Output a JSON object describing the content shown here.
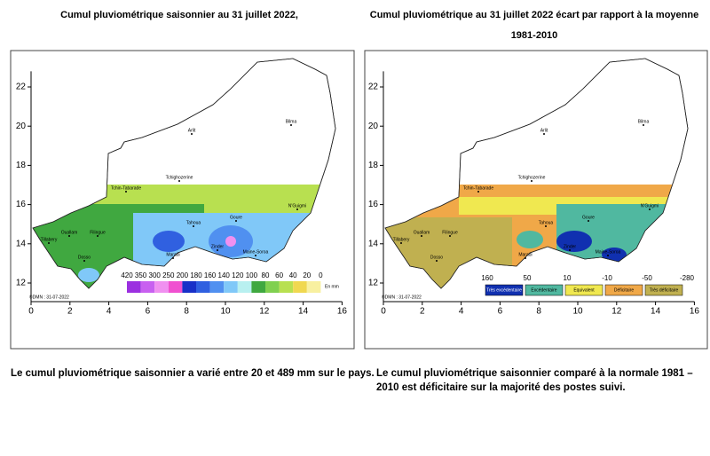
{
  "maps": [
    {
      "title": [
        "Cumul pluviométrique saisonnier au 31 juillet 2022,"
      ],
      "xticks": [
        0,
        2,
        4,
        6,
        8,
        10,
        12,
        14,
        16
      ],
      "yticks": [
        12,
        14,
        16,
        18,
        20,
        22
      ],
      "legend": {
        "labels": [
          420,
          350,
          300,
          250,
          200,
          180,
          160,
          140,
          120,
          100,
          80,
          60,
          40,
          20,
          0
        ],
        "colors": [
          "#9b30e0",
          "#c860f0",
          "#f090f0",
          "#f050d0",
          "#1830c8",
          "#3060e0",
          "#5090f0",
          "#80c8f8",
          "#b8f0f0",
          "#40a840",
          "#80d050",
          "#b8e050",
          "#f0d850",
          "#f8f0a0"
        ],
        "unit": "En mm"
      },
      "places": [
        "Arlit",
        "Bilma",
        "Tchighozerine",
        "Tchin-Tabarade",
        "Tahoua",
        "Goure",
        "N'Guigmi",
        "Maine-Soroa",
        "Ouallam",
        "Tillabery",
        "Filingue",
        "Dosso",
        "Maradi",
        "Zinder"
      ],
      "credit": "©DMN : 31-07-2022",
      "caption": [
        "Le cumul pluviométrique saisonnier a varié entre 20 et 489 mm sur le pays."
      ]
    },
    {
      "title": [
        "Cumul pluviométrique au 31  juillet 2022 écart par rapport à la moyenne",
        "1981-2010"
      ],
      "xticks": [
        0,
        2,
        4,
        6,
        8,
        10,
        12,
        14,
        16
      ],
      "yticks": [
        12,
        14,
        16,
        18,
        20,
        22
      ],
      "legend": {
        "scale": [
          160,
          50,
          10,
          -10,
          -50,
          -280
        ],
        "classes": [
          {
            "label": "Très excédentaire",
            "color": "#1030b0"
          },
          {
            "label": "Excédentaire",
            "color": "#50b8a0"
          },
          {
            "label": "Equivalent",
            "color": "#f0e850"
          },
          {
            "label": "Déficitaire",
            "color": "#f0a848"
          },
          {
            "label": "Très déficitaire",
            "color": "#c0b050"
          }
        ]
      },
      "places": [
        "Arlit",
        "Bilma",
        "Tchighozerine",
        "Tchin-Tabarade",
        "Tahoua",
        "Goure",
        "N'Guigmi",
        "Maine-Soroa",
        "Ouallam",
        "Tillabery",
        "Filingue",
        "Dosso",
        "Maradi",
        "Zinder"
      ],
      "credit": "©DMN : 31-07-2022",
      "caption": [
        "Le cumul pluviométrique saisonnier comparé à la normale 1981 –",
        "2010 est déficitaire sur la majorité des postes suivi."
      ]
    }
  ]
}
